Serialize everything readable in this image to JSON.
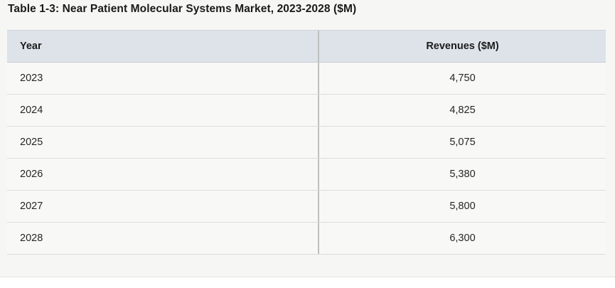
{
  "title": "Table 1-3: Near Patient Molecular Systems Market, 2023-2028 ($M)",
  "table": {
    "header": {
      "year": "Year",
      "revenues": "Revenues ($M)"
    },
    "rows": [
      {
        "year": "2023",
        "revenues": "4,750"
      },
      {
        "year": "2024",
        "revenues": "4,825"
      },
      {
        "year": "2025",
        "revenues": "5,075"
      },
      {
        "year": "2026",
        "revenues": "5,380"
      },
      {
        "year": "2027",
        "revenues": "5,800"
      },
      {
        "year": "2028",
        "revenues": "6,300"
      }
    ]
  },
  "colors": {
    "page_band": "#f6f6f4",
    "header_bg": "#dee3ea",
    "row_bg": "#f8f8f6",
    "row_separator": "#dcdcdc",
    "column_divider": "#bfbfbf",
    "title_text": "#1a1a1a",
    "cell_text": "#262626"
  },
  "chart_data": {
    "type": "table",
    "title": "Table 1-3: Near Patient Molecular Systems Market, 2023-2028 ($M)",
    "columns": [
      "Year",
      "Revenues ($M)"
    ],
    "rows": [
      [
        2023,
        4750
      ],
      [
        2024,
        4825
      ],
      [
        2025,
        5075
      ],
      [
        2026,
        5380
      ],
      [
        2027,
        5800
      ],
      [
        2028,
        6300
      ]
    ]
  }
}
